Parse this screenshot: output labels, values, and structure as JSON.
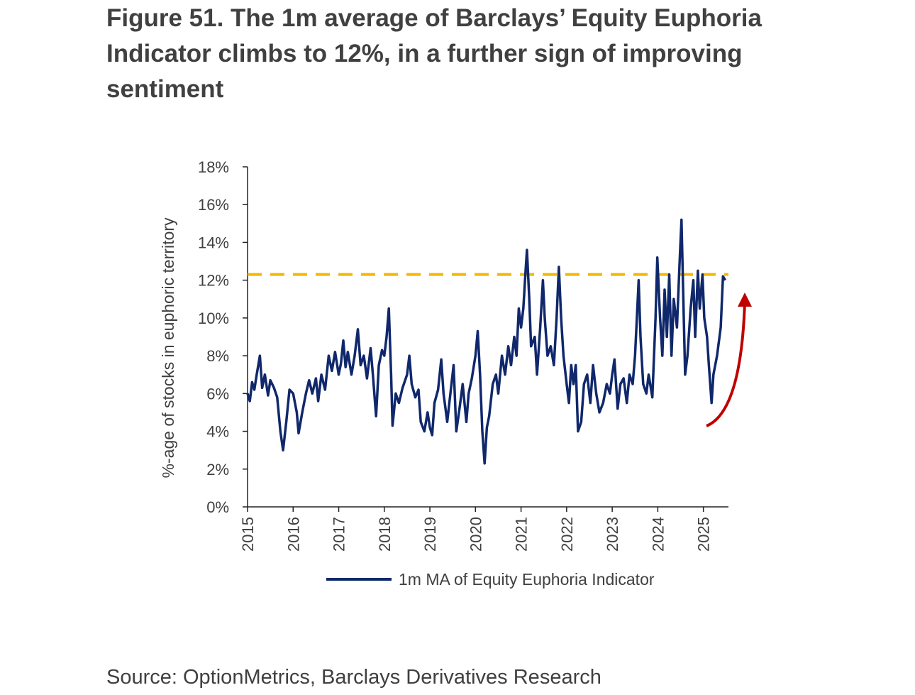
{
  "chart_data": {
    "type": "line",
    "title": [
      "Figure 51. The 1m average of Barclays’ Equity Euphoria",
      "Indicator climbs to 12%, in a further sign of improving",
      "sentiment"
    ],
    "y_label": "%-age of stocks in euphoric territory",
    "source": "Source: OptionMetrics, Barclays Derivatives Research",
    "xlim": [
      2015,
      2025.55
    ],
    "xticks": [
      2015,
      2016,
      2017,
      2018,
      2019,
      2020,
      2021,
      2022,
      2023,
      2024,
      2025
    ],
    "ylim": [
      0,
      18
    ],
    "yticks": [
      {
        "value": 0,
        "label": "0%"
      },
      {
        "value": 2,
        "label": "2%"
      },
      {
        "value": 4,
        "label": "4%"
      },
      {
        "value": 6,
        "label": "6%"
      },
      {
        "value": 8,
        "label": "8%"
      },
      {
        "value": 10,
        "label": "10%"
      },
      {
        "value": 12,
        "label": "12%"
      },
      {
        "value": 14,
        "label": "14%"
      },
      {
        "value": 16,
        "label": "16%"
      },
      {
        "value": 18,
        "label": "18%"
      }
    ],
    "reference_line": {
      "value": 12.3,
      "color": "#f5b800"
    },
    "x": [
      2015.0,
      2015.05,
      2015.1,
      2015.15,
      2015.2,
      2015.27,
      2015.32,
      2015.38,
      2015.45,
      2015.5,
      2015.58,
      2015.65,
      2015.72,
      2015.78,
      2015.85,
      2015.92,
      2016.0,
      2016.08,
      2016.12,
      2016.2,
      2016.28,
      2016.35,
      2016.42,
      2016.5,
      2016.55,
      2016.62,
      2016.7,
      2016.78,
      2016.85,
      2016.92,
      2017.0,
      2017.05,
      2017.1,
      2017.15,
      2017.2,
      2017.28,
      2017.35,
      2017.42,
      2017.48,
      2017.55,
      2017.62,
      2017.7,
      2017.75,
      2017.82,
      2017.88,
      2017.95,
      2018.0,
      2018.05,
      2018.1,
      2018.15,
      2018.18,
      2018.25,
      2018.32,
      2018.4,
      2018.5,
      2018.55,
      2018.6,
      2018.68,
      2018.75,
      2018.8,
      2018.88,
      2018.95,
      2019.0,
      2019.05,
      2019.1,
      2019.18,
      2019.25,
      2019.3,
      2019.38,
      2019.45,
      2019.52,
      2019.58,
      2019.65,
      2019.72,
      2019.8,
      2019.85,
      2019.92,
      2020.0,
      2020.05,
      2020.1,
      2020.15,
      2020.2,
      2020.25,
      2020.3,
      2020.38,
      2020.45,
      2020.5,
      2020.58,
      2020.65,
      2020.72,
      2020.78,
      2020.85,
      2020.9,
      2020.95,
      2021.0,
      2021.05,
      2021.1,
      2021.13,
      2021.18,
      2021.22,
      2021.3,
      2021.35,
      2021.42,
      2021.48,
      2021.52,
      2021.58,
      2021.65,
      2021.72,
      2021.78,
      2021.83,
      2021.88,
      2021.93,
      2022.0,
      2022.05,
      2022.1,
      2022.15,
      2022.2,
      2022.25,
      2022.32,
      2022.38,
      2022.45,
      2022.52,
      2022.58,
      2022.65,
      2022.72,
      2022.8,
      2022.88,
      2022.95,
      2023.0,
      2023.05,
      2023.12,
      2023.18,
      2023.25,
      2023.32,
      2023.38,
      2023.45,
      2023.5,
      2023.55,
      2023.58,
      2023.62,
      2023.68,
      2023.75,
      2023.8,
      2023.88,
      2023.95,
      2023.99,
      2024.05,
      2024.1,
      2024.15,
      2024.2,
      2024.25,
      2024.3,
      2024.35,
      2024.42,
      2024.48,
      2024.52,
      2024.56,
      2024.6,
      2024.65,
      2024.72,
      2024.78,
      2024.82,
      2024.88,
      2024.92,
      2024.98,
      2025.02,
      2025.08,
      2025.12,
      2025.18,
      2025.22,
      2025.3,
      2025.38,
      2025.43,
      2025.48
    ],
    "series": [
      {
        "name": "1m MA of Equity Euphoria Indicator",
        "color": "#10286b",
        "values": [
          6.0,
          5.6,
          6.6,
          6.2,
          7.0,
          8.0,
          6.3,
          7.0,
          5.9,
          6.7,
          6.3,
          5.8,
          4.0,
          3.0,
          4.5,
          6.2,
          6.0,
          5.0,
          3.9,
          5.0,
          6.0,
          6.7,
          6.0,
          6.8,
          5.6,
          7.0,
          6.2,
          8.0,
          7.2,
          8.2,
          7.0,
          7.6,
          8.8,
          7.4,
          8.2,
          7.0,
          8.0,
          9.4,
          7.5,
          8.0,
          6.8,
          8.4,
          7.0,
          4.8,
          7.5,
          8.3,
          8.0,
          9.0,
          10.5,
          7.0,
          4.3,
          6.0,
          5.5,
          6.3,
          7.0,
          8.0,
          6.5,
          5.8,
          6.2,
          4.5,
          4.0,
          5.0,
          4.2,
          3.8,
          5.5,
          6.2,
          7.8,
          6.0,
          4.5,
          6.0,
          7.5,
          4.0,
          5.2,
          6.5,
          4.5,
          6.0,
          6.8,
          8.0,
          9.3,
          7.0,
          4.0,
          2.3,
          4.2,
          4.8,
          6.5,
          7.0,
          6.0,
          8.0,
          7.0,
          8.5,
          7.5,
          9.0,
          8.0,
          10.5,
          9.5,
          10.5,
          12.5,
          13.6,
          11.0,
          8.5,
          9.0,
          7.0,
          9.5,
          12.0,
          10.0,
          8.0,
          8.5,
          7.5,
          10.0,
          12.7,
          10.0,
          8.0,
          6.5,
          5.5,
          7.5,
          6.5,
          7.5,
          4.0,
          4.5,
          6.5,
          7.0,
          5.5,
          7.5,
          6.0,
          5.0,
          5.5,
          6.5,
          6.0,
          7.0,
          7.8,
          5.2,
          6.5,
          6.8,
          5.5,
          7.0,
          6.5,
          8.0,
          10.5,
          12.0,
          9.0,
          6.5,
          6.0,
          7.0,
          5.8,
          10.0,
          13.2,
          10.0,
          8.0,
          11.5,
          9.0,
          12.3,
          8.0,
          11.0,
          9.5,
          13.0,
          15.2,
          11.0,
          7.0,
          8.0,
          10.5,
          12.0,
          9.0,
          12.5,
          10.5,
          12.3,
          10.0,
          9.0,
          7.5,
          5.5,
          7.0,
          8.0,
          9.5,
          12.2,
          12.0
        ]
      }
    ]
  }
}
